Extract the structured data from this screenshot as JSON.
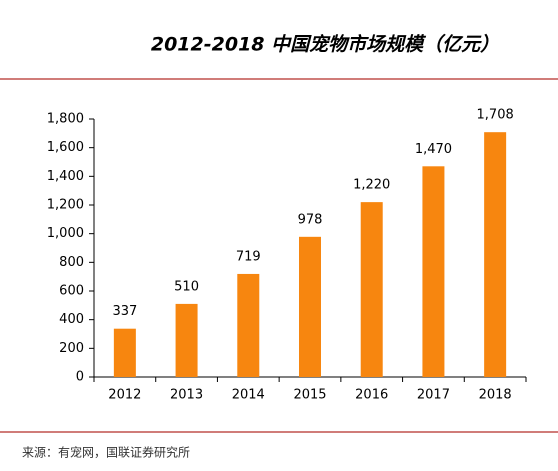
{
  "chart_data": {
    "type": "bar",
    "title": "2012-2018 中国宠物市场规模（亿元）",
    "categories": [
      "2012",
      "2013",
      "2014",
      "2015",
      "2016",
      "2017",
      "2018"
    ],
    "values": [
      337,
      510,
      719,
      978,
      1220,
      1470,
      1708
    ],
    "value_labels": [
      "337",
      "510",
      "719",
      "978",
      "1,220",
      "1,470",
      "1,708"
    ],
    "color": "#f7860f",
    "ylim": [
      0,
      1800
    ],
    "yticks": [
      0,
      200,
      400,
      600,
      800,
      {
        "value": 1000,
        "label": "1,000"
      },
      {
        "value": 1200,
        "label": "1,200"
      },
      {
        "value": 1400,
        "label": "1,400"
      },
      {
        "value": 1600,
        "label": "1,600"
      },
      {
        "value": 1800,
        "label": "1,800"
      }
    ],
    "grid": false,
    "source": "来源：有宠网，国联证券研究所"
  }
}
